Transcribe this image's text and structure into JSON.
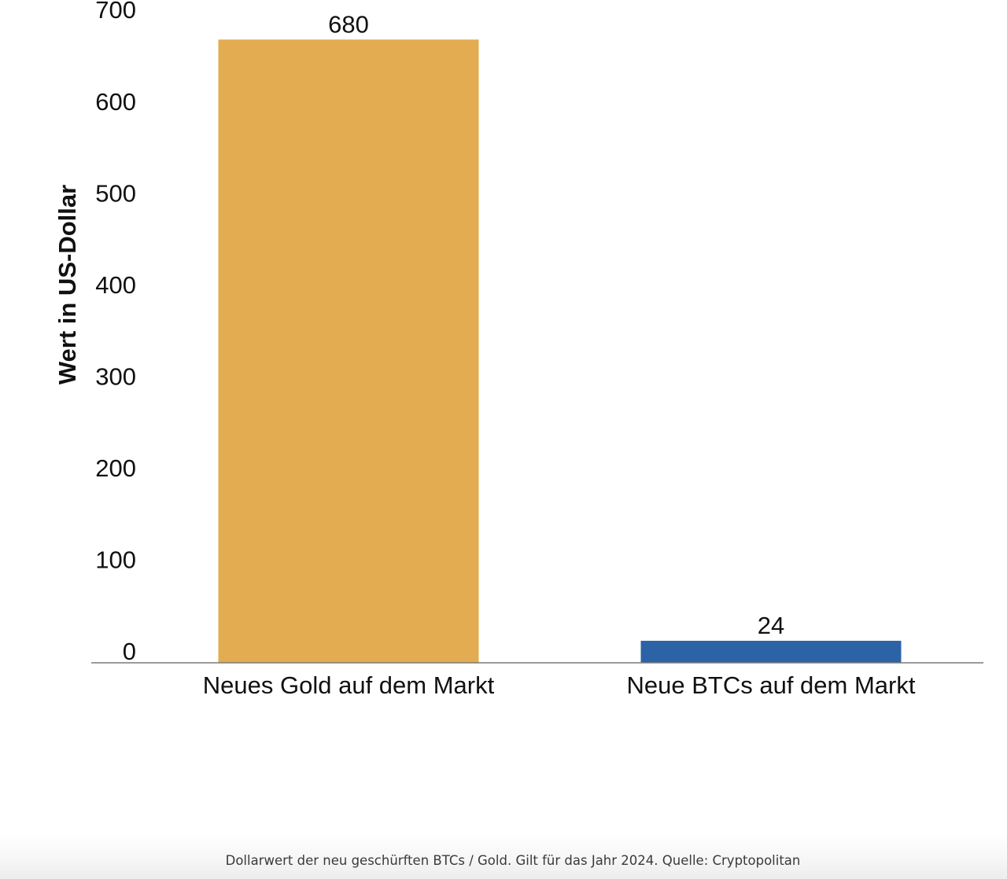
{
  "chart_data": {
    "type": "bar",
    "categories": [
      "Neues Gold auf dem Markt",
      "Neue BTCs auf dem Markt"
    ],
    "values": [
      680,
      24
    ],
    "data_labels": [
      "680",
      "24"
    ],
    "colors": [
      "#E4AC50",
      "#2C63A6"
    ],
    "title": "",
    "xlabel": "",
    "ylabel": "Wert in US-Dollar",
    "ylim": [
      0,
      700
    ],
    "yticks": [
      0,
      100,
      200,
      300,
      400,
      500,
      600,
      700
    ],
    "grid": false,
    "legend": "none"
  },
  "caption": "Dollarwert der neu geschürften BTCs / Gold. Gilt für das Jahr 2024. Quelle: Cryptopolitan"
}
